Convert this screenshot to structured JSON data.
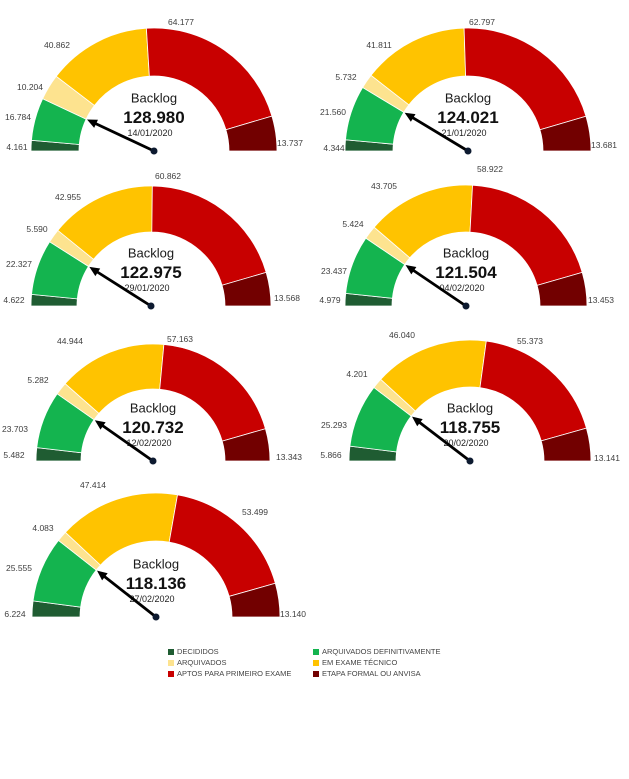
{
  "chart_data": [
    {
      "type": "pie",
      "title": "Backlog",
      "value": 128980,
      "date": "14/01/2020",
      "needle_value": 20945,
      "values": [
        4161,
        16784,
        10204,
        40862,
        64177,
        13737
      ]
    },
    {
      "type": "pie",
      "title": "Backlog",
      "value": 124021,
      "date": "21/01/2020",
      "needle_value": 25904,
      "values": [
        4344,
        21560,
        5732,
        41811,
        62797,
        13681
      ]
    },
    {
      "type": "pie",
      "title": "Backlog",
      "value": 122975,
      "date": "29/01/2020",
      "needle_value": 26949,
      "values": [
        4622,
        22327,
        5590,
        42955,
        60862,
        13568
      ]
    },
    {
      "type": "pie",
      "title": "Backlog",
      "value": 121504,
      "date": "04/02/2020",
      "needle_value": 28416,
      "values": [
        4979,
        23437,
        5424,
        43705,
        58922,
        13453
      ]
    },
    {
      "type": "pie",
      "title": "Backlog",
      "value": 120732,
      "date": "12/02/2020",
      "needle_value": 29185,
      "values": [
        5482,
        23703,
        5282,
        44944,
        57163,
        13343
      ]
    },
    {
      "type": "pie",
      "title": "Backlog",
      "value": 118755,
      "date": "20/02/2020",
      "needle_value": 31159,
      "values": [
        5866,
        25293,
        4201,
        46040,
        55373,
        13141
      ]
    },
    {
      "type": "pie",
      "title": "Backlog",
      "value": 118136,
      "date": "27/02/2020",
      "needle_value": 31779,
      "values": [
        6224,
        25555,
        4083,
        47414,
        53499,
        13140
      ]
    }
  ],
  "legend": {
    "series": [
      {
        "name": "DECIDIDOS",
        "color": "#1F5C32"
      },
      {
        "name": "ARQUIVADOS DEFINITIVAMENTE",
        "color": "#14B44F"
      },
      {
        "name": "ARQUIVADOS",
        "color": "#FDE38F"
      },
      {
        "name": "EM EXAME TÉCNICO",
        "color": "#FFC300"
      },
      {
        "name": "APTOS PARA PRIMEIRO EXAME",
        "color": "#C80000"
      },
      {
        "name": "ETAPA FORMAL OU ANVISA",
        "color": "#720000"
      }
    ]
  }
}
